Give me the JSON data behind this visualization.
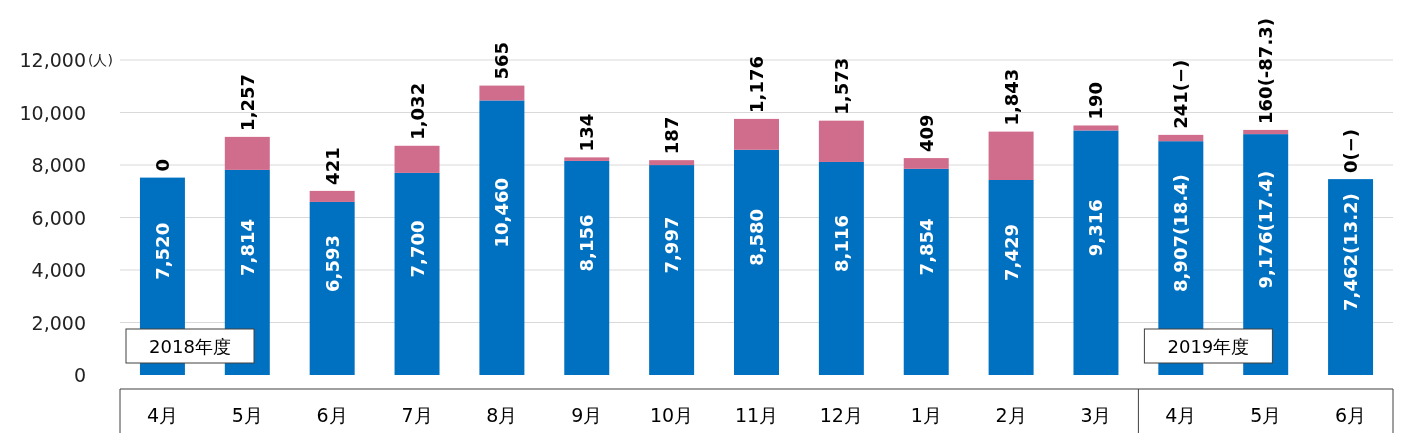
{
  "chart_data": {
    "type": "bar",
    "stacked": true,
    "ylabel": "(人)",
    "categories": [
      "4月",
      "5月",
      "6月",
      "7月",
      "8月",
      "9月",
      "10月",
      "11月",
      "12月",
      "1月",
      "2月",
      "3月",
      "4月",
      "5月",
      "6月"
    ],
    "series": [
      {
        "color": "#0070c0",
        "values": [
          7520,
          7814,
          6593,
          7700,
          10460,
          8156,
          7997,
          8580,
          8116,
          7854,
          7429,
          9316,
          8907,
          9176,
          7462
        ],
        "value_labels": [
          "7,520",
          "7,814",
          "6,593",
          "7,700",
          "10,460",
          "8,156",
          "7,997",
          "8,580",
          "8,116",
          "7,854",
          "7,429",
          "9,316",
          "8,907(18.4)",
          "9,176(17.4)",
          "7,462(13.2)"
        ]
      },
      {
        "color": "#d06c8c",
        "values": [
          0,
          1257,
          421,
          1032,
          565,
          134,
          187,
          1176,
          1573,
          409,
          1843,
          190,
          241,
          160,
          0
        ],
        "value_labels": [
          "0",
          "1,257",
          "421",
          "1,032",
          "565",
          "134",
          "187",
          "1,176",
          "1,573",
          "409",
          "1,843",
          "190",
          "241(−)",
          "160(-87.3)",
          "0(−)"
        ]
      }
    ],
    "ylim": [
      0,
      12000
    ],
    "yticks": [
      0,
      {
        "value": 2000,
        "label": "2,000"
      },
      {
        "value": 4000,
        "label": "4,000"
      },
      {
        "value": 6000,
        "label": "6,000"
      },
      {
        "value": 8000,
        "label": "8,000"
      },
      {
        "value": 10000,
        "label": "10,000"
      },
      {
        "value": 12000,
        "label": "12,000"
      }
    ],
    "grid": "y",
    "annotations": [
      "2018年度",
      "2019年度"
    ]
  }
}
